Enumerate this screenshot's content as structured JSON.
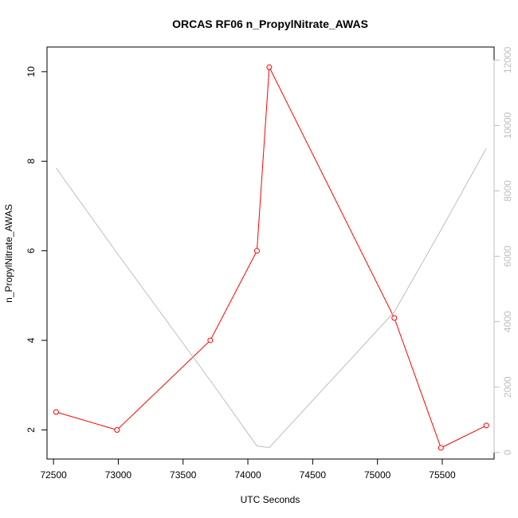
{
  "chart_data": {
    "type": "line",
    "title": "ORCAS RF06 n_PropylNitrate_AWAS",
    "xlabel": "UTC Seconds",
    "ylabel": "n_PropylNitrate_AWAS",
    "xlim": [
      72450,
      75900
    ],
    "ylim": [
      1.35,
      10.55
    ],
    "y2lim": [
      -200,
      12400
    ],
    "x_ticks": [
      72500,
      73000,
      73500,
      74000,
      74500,
      75000,
      75500
    ],
    "y_ticks": [
      2,
      4,
      6,
      8,
      10
    ],
    "y2_ticks": [
      0,
      2000,
      4000,
      6000,
      8000,
      10000,
      12000
    ],
    "grid": false,
    "series": [
      {
        "axis": "left",
        "color": "#ff0000",
        "markers": "open-circle",
        "x": [
          72520,
          72990,
          73710,
          74070,
          74165,
          75130,
          75490,
          75840
        ],
        "y": [
          2.4,
          2.0,
          4.0,
          6.0,
          10.1,
          4.5,
          1.6,
          2.1
        ]
      },
      {
        "axis": "right",
        "color": "#bebebe",
        "markers": "none",
        "x": [
          72520,
          72990,
          73710,
          74070,
          74165,
          75130,
          75490,
          75840
        ],
        "y": [
          8700,
          6100,
          2200,
          200,
          150,
          4300,
          6800,
          9300
        ]
      }
    ]
  }
}
